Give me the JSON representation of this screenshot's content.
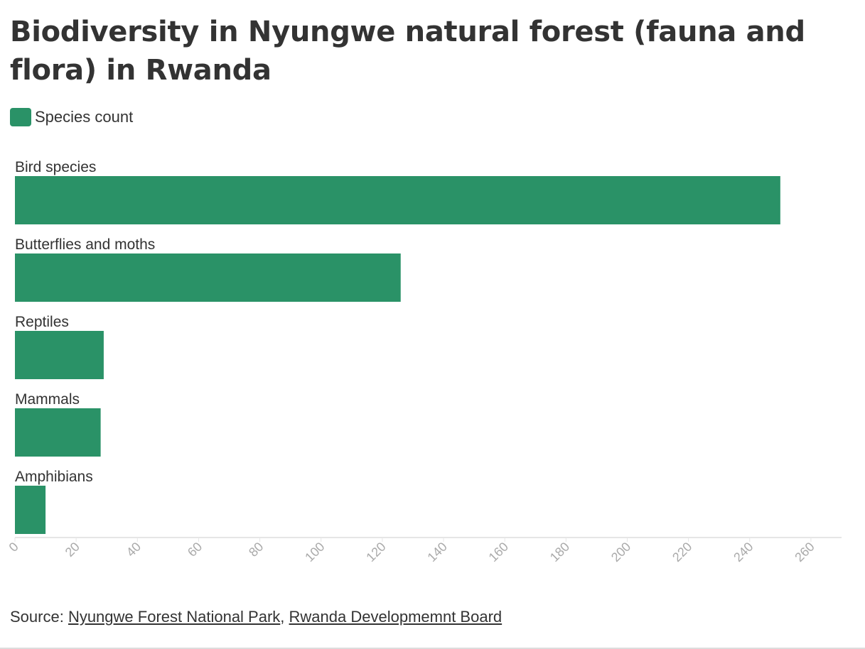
{
  "title": "Biodiversity in Nyungwe natural forest (fauna and flora) in Rwanda",
  "legend": {
    "label": "Species count",
    "color": "#2a9267"
  },
  "source": {
    "prefix": "Source: ",
    "links": [
      "Nyungwe Forest National Park",
      "Rwanda Developmemnt Board"
    ],
    "separator": ", "
  },
  "chart_data": {
    "type": "bar",
    "orientation": "horizontal",
    "categories": [
      "Bird species",
      "Butterflies and moths",
      "Reptiles",
      "Mammals",
      "Amphibians"
    ],
    "series": [
      {
        "name": "Species count",
        "values": [
          250,
          126,
          29,
          28,
          10
        ]
      }
    ],
    "xlim": [
      0,
      270
    ],
    "xticks": [
      "0",
      "20",
      "40",
      "60",
      "80",
      "100",
      "120",
      "140",
      "160",
      "180",
      "200",
      "220",
      "240",
      "260"
    ],
    "grid": false,
    "legend_position": "top-left",
    "bar_color": "#2a9267",
    "tick_label_rotation": -45
  }
}
